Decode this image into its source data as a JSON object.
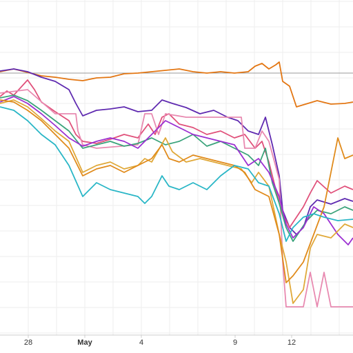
{
  "chart_data": {
    "type": "line",
    "x_tick_labels": [
      {
        "label": "28",
        "bold": false
      },
      {
        "label": "May",
        "bold": true
      },
      {
        "label": "4",
        "bold": false
      },
      {
        "label": "9",
        "bold": false
      },
      {
        "label": "12",
        "bold": false
      }
    ],
    "grid": true,
    "legend": "none",
    "reference_line": {
      "y": 106,
      "color": "#999999"
    },
    "x_range": [
      0,
      512
    ],
    "y_range": [
      0,
      486
    ],
    "series": [
      {
        "color": "#e37612",
        "values": [
          [
            0,
            104
          ],
          [
            20,
            100
          ],
          [
            40,
            105
          ],
          [
            60,
            110
          ],
          [
            80,
            112
          ],
          [
            100,
            115
          ],
          [
            120,
            117
          ],
          [
            140,
            113
          ],
          [
            160,
            112
          ],
          [
            180,
            107
          ],
          [
            200,
            106
          ],
          [
            220,
            104
          ],
          [
            240,
            102
          ],
          [
            260,
            100
          ],
          [
            280,
            104
          ],
          [
            300,
            106
          ],
          [
            320,
            104
          ],
          [
            340,
            106
          ],
          [
            360,
            104
          ],
          [
            370,
            96
          ],
          [
            380,
            92
          ],
          [
            390,
            100
          ],
          [
            400,
            94
          ],
          [
            405,
            90
          ],
          [
            410,
            118
          ],
          [
            420,
            125
          ],
          [
            430,
            155
          ],
          [
            440,
            152
          ],
          [
            460,
            146
          ],
          [
            480,
            151
          ],
          [
            500,
            150
          ],
          [
            512,
            148
          ]
        ]
      },
      {
        "color": "#5f2ab0",
        "values": [
          [
            0,
            103
          ],
          [
            20,
            100
          ],
          [
            40,
            104
          ],
          [
            60,
            112
          ],
          [
            80,
            118
          ],
          [
            100,
            130
          ],
          [
            110,
            150
          ],
          [
            120,
            168
          ],
          [
            140,
            160
          ],
          [
            160,
            158
          ],
          [
            180,
            155
          ],
          [
            200,
            162
          ],
          [
            220,
            160
          ],
          [
            235,
            145
          ],
          [
            250,
            150
          ],
          [
            270,
            156
          ],
          [
            290,
            165
          ],
          [
            310,
            160
          ],
          [
            330,
            170
          ],
          [
            345,
            175
          ],
          [
            360,
            190
          ],
          [
            375,
            195
          ],
          [
            385,
            170
          ],
          [
            395,
            210
          ],
          [
            405,
            255
          ],
          [
            410,
            305
          ],
          [
            420,
            330
          ],
          [
            430,
            340
          ],
          [
            440,
            330
          ],
          [
            450,
            300
          ],
          [
            460,
            290
          ],
          [
            480,
            296
          ],
          [
            500,
            288
          ],
          [
            512,
            292
          ]
        ]
      },
      {
        "color": "#e0507a",
        "values": [
          [
            0,
            140
          ],
          [
            10,
            132
          ],
          [
            20,
            138
          ],
          [
            40,
            116
          ],
          [
            50,
            130
          ],
          [
            60,
            148
          ],
          [
            80,
            162
          ],
          [
            100,
            175
          ],
          [
            110,
            195
          ],
          [
            120,
            205
          ],
          [
            140,
            208
          ],
          [
            160,
            202
          ],
          [
            180,
            195
          ],
          [
            200,
            200
          ],
          [
            215,
            180
          ],
          [
            225,
            195
          ],
          [
            235,
            170
          ],
          [
            245,
            165
          ],
          [
            260,
            180
          ],
          [
            280,
            185
          ],
          [
            300,
            195
          ],
          [
            320,
            190
          ],
          [
            340,
            200
          ],
          [
            355,
            195
          ],
          [
            370,
            215
          ],
          [
            380,
            205
          ],
          [
            390,
            235
          ],
          [
            400,
            275
          ],
          [
            410,
            310
          ],
          [
            420,
            330
          ],
          [
            430,
            315
          ],
          [
            440,
            300
          ],
          [
            450,
            280
          ],
          [
            460,
            262
          ],
          [
            480,
            280
          ],
          [
            500,
            270
          ],
          [
            512,
            275
          ]
        ]
      },
      {
        "color": "#e889b0",
        "values": [
          [
            0,
            135
          ],
          [
            40,
            130
          ],
          [
            80,
            165
          ],
          [
            110,
            165
          ],
          [
            113,
            190
          ],
          [
            120,
            210
          ],
          [
            140,
            215
          ],
          [
            200,
            210
          ],
          [
            210,
            165
          ],
          [
            220,
            165
          ],
          [
            230,
            195
          ],
          [
            240,
            165
          ],
          [
            270,
            170
          ],
          [
            300,
            170
          ],
          [
            350,
            170
          ],
          [
            355,
            215
          ],
          [
            370,
            215
          ],
          [
            380,
            190
          ],
          [
            390,
            205
          ],
          [
            405,
            260
          ],
          [
            410,
            380
          ],
          [
            415,
            445
          ],
          [
            440,
            445
          ],
          [
            450,
            395
          ],
          [
            460,
            445
          ],
          [
            470,
            395
          ],
          [
            480,
            445
          ],
          [
            512,
            445
          ]
        ]
      },
      {
        "color": "#3aa37a",
        "values": [
          [
            0,
            142
          ],
          [
            20,
            138
          ],
          [
            40,
            146
          ],
          [
            60,
            160
          ],
          [
            80,
            175
          ],
          [
            100,
            190
          ],
          [
            120,
            215
          ],
          [
            140,
            210
          ],
          [
            160,
            205
          ],
          [
            180,
            212
          ],
          [
            200,
            208
          ],
          [
            220,
            200
          ],
          [
            240,
            210
          ],
          [
            260,
            205
          ],
          [
            280,
            195
          ],
          [
            300,
            212
          ],
          [
            320,
            205
          ],
          [
            340,
            215
          ],
          [
            360,
            225
          ],
          [
            375,
            240
          ],
          [
            385,
            215
          ],
          [
            395,
            265
          ],
          [
            405,
            295
          ],
          [
            415,
            330
          ],
          [
            425,
            350
          ],
          [
            435,
            335
          ],
          [
            445,
            320
          ],
          [
            460,
            305
          ],
          [
            480,
            310
          ],
          [
            500,
            300
          ],
          [
            512,
            305
          ]
        ]
      },
      {
        "color": "#9b2fd1",
        "values": [
          [
            0,
            148
          ],
          [
            20,
            140
          ],
          [
            40,
            150
          ],
          [
            60,
            165
          ],
          [
            80,
            182
          ],
          [
            100,
            200
          ],
          [
            120,
            212
          ],
          [
            140,
            205
          ],
          [
            160,
            200
          ],
          [
            180,
            205
          ],
          [
            200,
            215
          ],
          [
            220,
            195
          ],
          [
            240,
            175
          ],
          [
            260,
            185
          ],
          [
            280,
            195
          ],
          [
            300,
            200
          ],
          [
            320,
            205
          ],
          [
            340,
            210
          ],
          [
            360,
            240
          ],
          [
            375,
            230
          ],
          [
            390,
            250
          ],
          [
            405,
            285
          ],
          [
            415,
            325
          ],
          [
            425,
            345
          ],
          [
            440,
            330
          ],
          [
            455,
            300
          ],
          [
            470,
            310
          ],
          [
            490,
            340
          ],
          [
            505,
            355
          ],
          [
            512,
            345
          ]
        ]
      },
      {
        "color": "#e0a838",
        "values": [
          [
            0,
            150
          ],
          [
            20,
            145
          ],
          [
            40,
            155
          ],
          [
            60,
            172
          ],
          [
            80,
            190
          ],
          [
            100,
            205
          ],
          [
            120,
            250
          ],
          [
            140,
            240
          ],
          [
            160,
            235
          ],
          [
            180,
            245
          ],
          [
            200,
            240
          ],
          [
            210,
            230
          ],
          [
            220,
            235
          ],
          [
            240,
            200
          ],
          [
            250,
            220
          ],
          [
            270,
            235
          ],
          [
            290,
            230
          ],
          [
            310,
            235
          ],
          [
            330,
            240
          ],
          [
            350,
            245
          ],
          [
            365,
            265
          ],
          [
            375,
            250
          ],
          [
            390,
            270
          ],
          [
            405,
            340
          ],
          [
            415,
            380
          ],
          [
            425,
            440
          ],
          [
            440,
            420
          ],
          [
            450,
            360
          ],
          [
            460,
            340
          ],
          [
            480,
            345
          ],
          [
            500,
            325
          ],
          [
            512,
            330
          ]
        ]
      },
      {
        "color": "#e08a1a",
        "values": [
          [
            0,
            145
          ],
          [
            20,
            148
          ],
          [
            40,
            160
          ],
          [
            60,
            175
          ],
          [
            80,
            195
          ],
          [
            100,
            215
          ],
          [
            120,
            255
          ],
          [
            140,
            245
          ],
          [
            160,
            240
          ],
          [
            180,
            250
          ],
          [
            200,
            240
          ],
          [
            220,
            230
          ],
          [
            235,
            210
          ],
          [
            245,
            230
          ],
          [
            260,
            235
          ],
          [
            280,
            225
          ],
          [
            300,
            230
          ],
          [
            320,
            235
          ],
          [
            340,
            240
          ],
          [
            355,
            250
          ],
          [
            370,
            275
          ],
          [
            390,
            285
          ],
          [
            405,
            340
          ],
          [
            415,
            410
          ],
          [
            425,
            400
          ],
          [
            440,
            380
          ],
          [
            455,
            340
          ],
          [
            470,
            300
          ],
          [
            480,
            250
          ],
          [
            490,
            200
          ],
          [
            500,
            230
          ],
          [
            512,
            225
          ]
        ]
      },
      {
        "color": "#29b6c6",
        "values": [
          [
            0,
            155
          ],
          [
            20,
            160
          ],
          [
            40,
            175
          ],
          [
            60,
            195
          ],
          [
            80,
            210
          ],
          [
            100,
            240
          ],
          [
            120,
            285
          ],
          [
            140,
            265
          ],
          [
            160,
            275
          ],
          [
            180,
            280
          ],
          [
            200,
            285
          ],
          [
            210,
            295
          ],
          [
            220,
            285
          ],
          [
            235,
            255
          ],
          [
            245,
            270
          ],
          [
            260,
            275
          ],
          [
            280,
            265
          ],
          [
            300,
            275
          ],
          [
            320,
            255
          ],
          [
            340,
            240
          ],
          [
            360,
            245
          ],
          [
            375,
            265
          ],
          [
            390,
            270
          ],
          [
            405,
            310
          ],
          [
            415,
            350
          ],
          [
            425,
            330
          ],
          [
            440,
            315
          ],
          [
            455,
            310
          ],
          [
            470,
            315
          ],
          [
            490,
            320
          ],
          [
            512,
            318
          ]
        ]
      }
    ]
  }
}
